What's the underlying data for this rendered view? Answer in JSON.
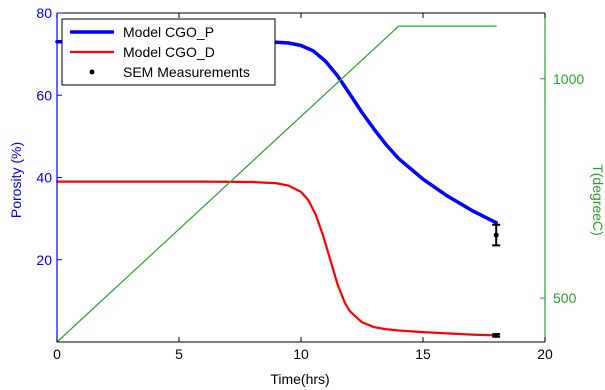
{
  "chart_data": {
    "type": "line",
    "title": "",
    "xlabel": "Time(hrs)",
    "ylabel": "Porosity (%)",
    "y2label": "T(degreeC)",
    "xlim": [
      0,
      20
    ],
    "ylim": [
      0,
      80
    ],
    "y2lim": [
      400,
      1150
    ],
    "x_ticks": [
      "0",
      "5",
      "10",
      "15",
      "20"
    ],
    "y_ticks": [
      "20",
      "40",
      "60",
      "80"
    ],
    "y2_ticks": [
      "500",
      "1000"
    ],
    "grid": false,
    "legend_position": "top-left",
    "colors": {
      "left_axis": "#0000ff",
      "right_axis": "#2ca02c",
      "frame": "#000000"
    },
    "series": [
      {
        "name": "Model CGO_P",
        "axis": "left",
        "color": "#0000ff",
        "style": "thick-line",
        "x": [
          0,
          2,
          4,
          6,
          8,
          9,
          9.5,
          10,
          10.5,
          11,
          11.5,
          12,
          12.5,
          13,
          13.5,
          14,
          15,
          16,
          17,
          18
        ],
        "y": [
          73,
          73,
          73,
          73,
          73,
          72.9,
          72.7,
          72.1,
          70.8,
          68.3,
          64.7,
          60.3,
          55.8,
          51.7,
          47.9,
          44.6,
          39.6,
          35.5,
          32,
          29
        ]
      },
      {
        "name": "Model CGO_D",
        "axis": "left",
        "color": "#ff0000",
        "style": "line",
        "x": [
          0,
          2,
          4,
          6,
          8,
          9,
          9.5,
          10,
          10.3,
          10.6,
          10.9,
          11.2,
          11.5,
          11.8,
          12,
          12.5,
          13,
          13.5,
          14,
          15,
          16,
          17,
          18
        ],
        "y": [
          39,
          39,
          39,
          39,
          38.9,
          38.6,
          38,
          36.5,
          34.5,
          31,
          26,
          20,
          14,
          9.5,
          7.5,
          4.8,
          3.6,
          3.1,
          2.8,
          2.4,
          2.1,
          1.8,
          1.6
        ]
      },
      {
        "name": "SEM Measurements",
        "axis": "left",
        "color": "#000000",
        "style": "errorbar",
        "x": [
          18,
          18
        ],
        "y": [
          26,
          1.6
        ],
        "err": [
          2.5,
          0.3
        ]
      },
      {
        "axis": "right",
        "color": "#2ca02c",
        "style": "thin-line",
        "x": [
          0,
          14,
          18
        ],
        "y": [
          400,
          1120,
          1120
        ]
      }
    ]
  }
}
